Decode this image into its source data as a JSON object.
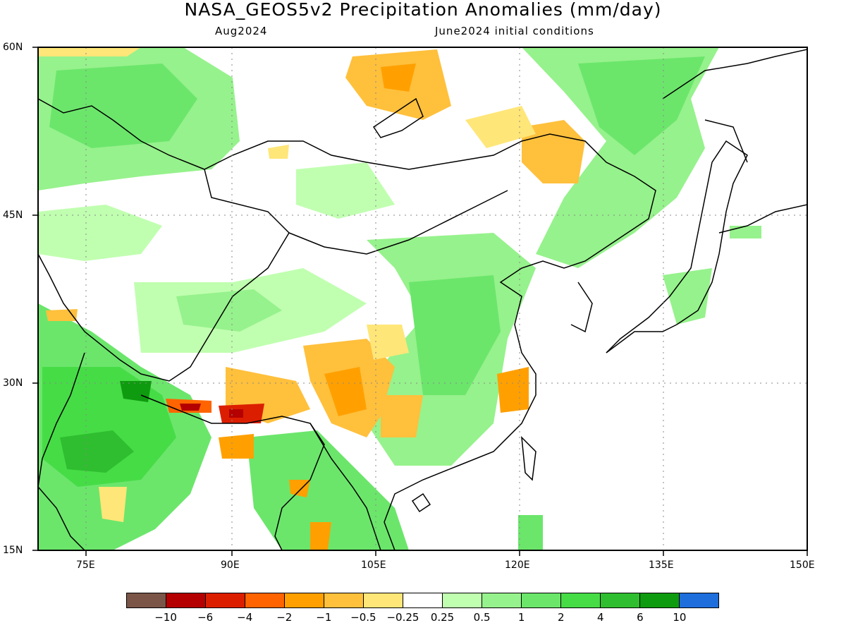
{
  "title": "NASA_GEOS5v2 Precipitation Anomalies (mm/day)",
  "subtitle_left": "Aug2024",
  "subtitle_right": "June2024 initial conditions",
  "axes": {
    "y_ticks": [
      "60N",
      "45N",
      "30N",
      "15N"
    ],
    "x_ticks": [
      "75E",
      "90E",
      "105E",
      "120E",
      "135E",
      "150E"
    ]
  },
  "colorbar": {
    "colors": [
      "#7a5548",
      "#b40000",
      "#dc1e00",
      "#ff6400",
      "#ffa000",
      "#ffc03c",
      "#ffe678",
      "#ffffff",
      "#c0ffb0",
      "#96f28c",
      "#6be66b",
      "#46dc46",
      "#2fbe2f",
      "#0f9b0f",
      "#1e6edc"
    ],
    "labels": [
      "−10",
      "−6",
      "−4",
      "−2",
      "−1",
      "−0.5",
      "−0.25",
      "0.25",
      "0.5",
      "1",
      "2",
      "4",
      "6",
      "10"
    ]
  }
}
